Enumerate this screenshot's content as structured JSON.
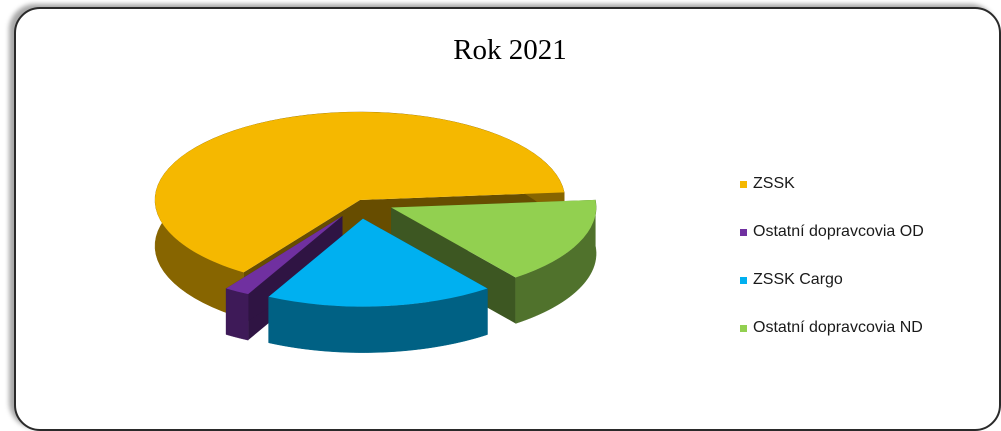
{
  "chart_data": {
    "type": "pie",
    "title": "Rok 2021",
    "legend_position": "right",
    "slices": [
      {
        "label": "ZSSK",
        "value": 64,
        "color": "#F5B800",
        "exploded": false
      },
      {
        "label": "Ostatní dopravcovia OD",
        "value": 2,
        "color": "#7030A0",
        "exploded": true
      },
      {
        "label": "ZSSK Cargo",
        "value": 18,
        "color": "#00B0F0",
        "exploded": true
      },
      {
        "label": "Ostatní dopravcovia ND",
        "value": 16,
        "color": "#92D050",
        "exploded": true
      }
    ]
  }
}
